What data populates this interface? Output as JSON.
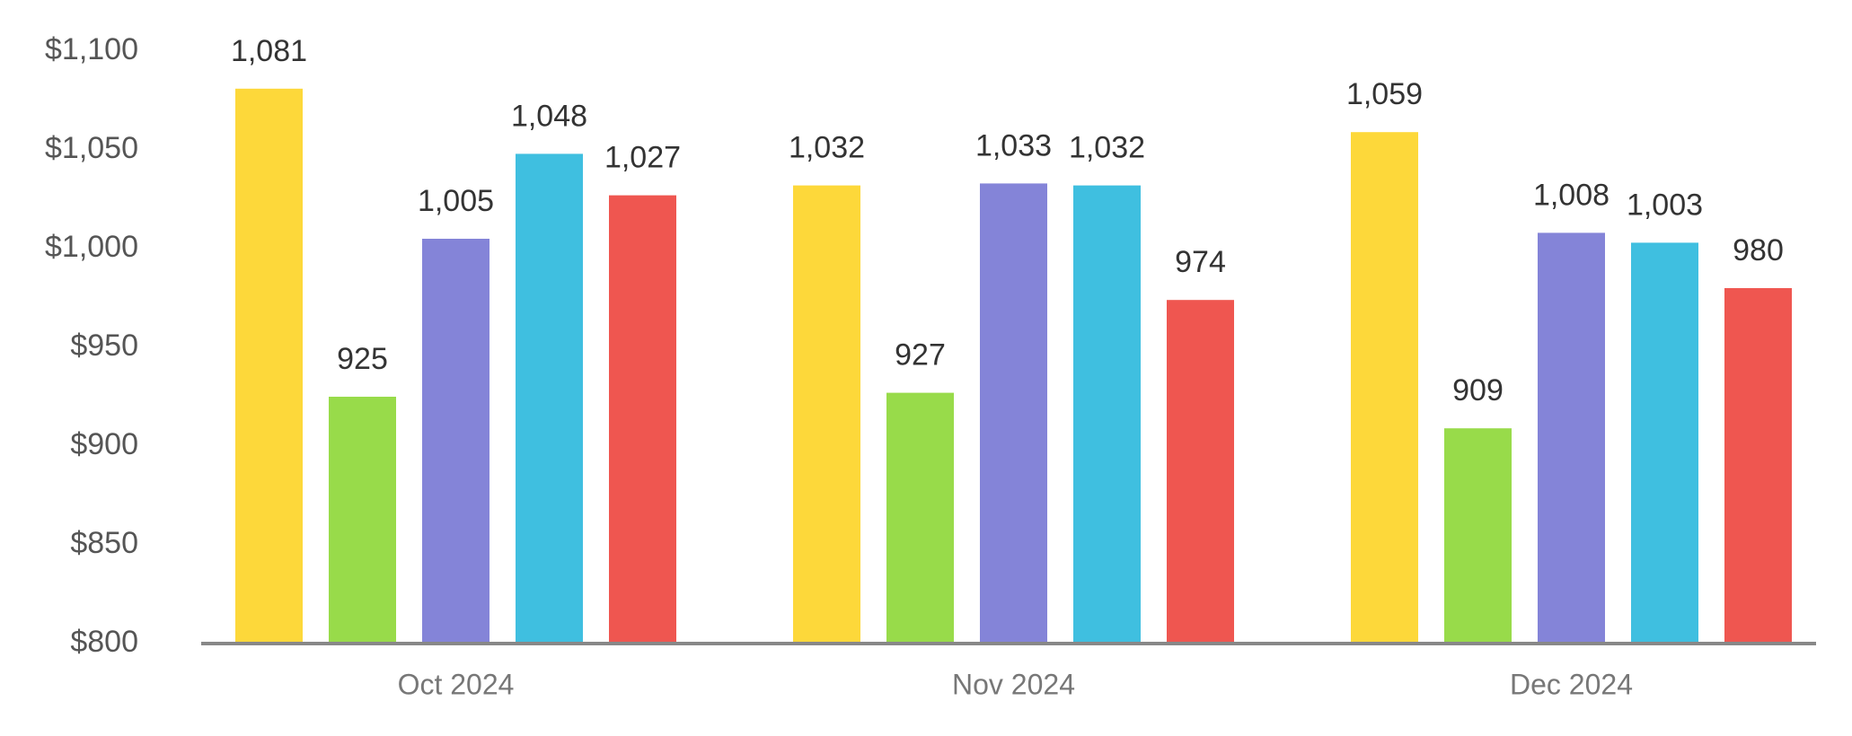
{
  "chart_data": {
    "type": "bar",
    "categories": [
      "Oct 2024",
      "Nov 2024",
      "Dec 2024"
    ],
    "series": [
      {
        "color": "#fdd83a",
        "values": [
          1081,
          1032,
          1059
        ],
        "value_labels": [
          "1,081",
          "1,032",
          "1,059"
        ]
      },
      {
        "color": "#98db4a",
        "values": [
          925,
          927,
          909
        ],
        "value_labels": [
          "925",
          "927",
          "909"
        ]
      },
      {
        "color": "#8484d8",
        "values": [
          1005,
          1033,
          1008
        ],
        "value_labels": [
          "1,005",
          "1,033",
          "1,008"
        ]
      },
      {
        "color": "#3fbfe0",
        "values": [
          1048,
          1032,
          1003
        ],
        "value_labels": [
          "1,048",
          "1,032",
          "1,003"
        ]
      },
      {
        "color": "#ef5650",
        "values": [
          1027,
          974,
          980
        ],
        "value_labels": [
          "1,027",
          "974",
          "980"
        ]
      }
    ],
    "ylim": [
      800,
      1100
    ],
    "yticks": [
      {
        "value": 800,
        "label": "$800"
      },
      {
        "value": 850,
        "label": "$850"
      },
      {
        "value": 900,
        "label": "$900"
      },
      {
        "value": 950,
        "label": "$950"
      },
      {
        "value": 1000,
        "label": "$1,000"
      },
      {
        "value": 1050,
        "label": "$1,050"
      },
      {
        "value": 1100,
        "label": "$1,100"
      }
    ],
    "grid": false
  }
}
